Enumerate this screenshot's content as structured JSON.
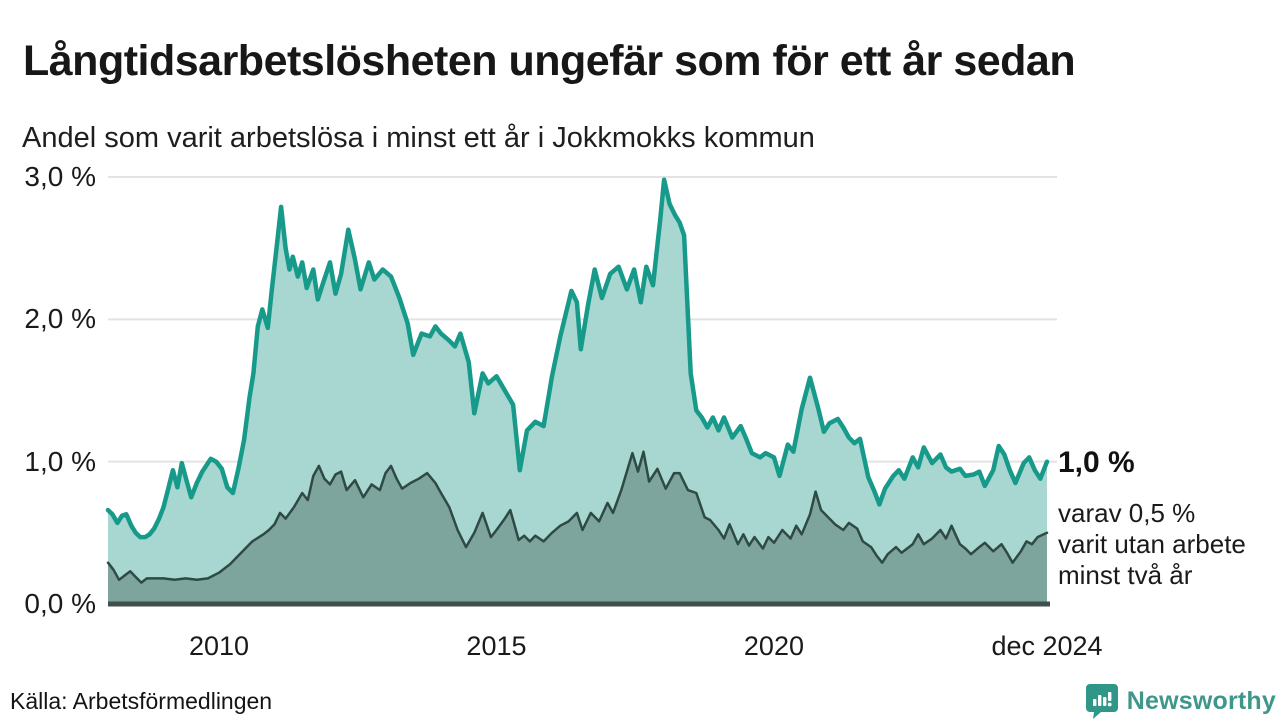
{
  "header": {
    "title": "Långtidsarbetslösheten ungefär som för ett år sedan",
    "subtitle": "Andel som varit arbetslösa i minst ett år i Jokkmokks kommun"
  },
  "chart_data": {
    "type": "area",
    "title": "Långtidsarbetslösheten ungefär som för ett år sedan",
    "subtitle": "Andel som varit arbetslösa i minst ett år i Jokkmokks kommun",
    "x_range": [
      2008.0,
      2024.92
    ],
    "y_range": [
      0,
      3
    ],
    "grid": true,
    "legend_position": "none",
    "ylabel": "",
    "xlabel": "",
    "x_ticks": [
      {
        "x": 2010,
        "label": "2010"
      },
      {
        "x": 2015,
        "label": "2015"
      },
      {
        "x": 2020,
        "label": "2020"
      },
      {
        "x": 2024.92,
        "label": "dec 2024"
      }
    ],
    "y_ticks": [
      {
        "v": 0,
        "label": "0,0 %"
      },
      {
        "v": 1,
        "label": "1,0 %"
      },
      {
        "v": 2,
        "label": "2,0 %"
      },
      {
        "v": 3,
        "label": "3,0 %"
      }
    ],
    "series": [
      {
        "name": "Andel som varit arbetslösa minst ett år",
        "line_color": "#189a8b",
        "fill_color": "#a7d7d0",
        "line_width": 4.5,
        "points": [
          [
            2008.0,
            0.66
          ],
          [
            2008.08,
            0.63
          ],
          [
            2008.17,
            0.57
          ],
          [
            2008.25,
            0.62
          ],
          [
            2008.33,
            0.63
          ],
          [
            2008.42,
            0.55
          ],
          [
            2008.5,
            0.5
          ],
          [
            2008.58,
            0.47
          ],
          [
            2008.67,
            0.47
          ],
          [
            2008.75,
            0.49
          ],
          [
            2008.83,
            0.53
          ],
          [
            2008.92,
            0.6
          ],
          [
            2009.0,
            0.68
          ],
          [
            2009.08,
            0.8
          ],
          [
            2009.17,
            0.94
          ],
          [
            2009.25,
            0.82
          ],
          [
            2009.33,
            0.99
          ],
          [
            2009.42,
            0.86
          ],
          [
            2009.5,
            0.75
          ],
          [
            2009.6,
            0.85
          ],
          [
            2009.7,
            0.93
          ],
          [
            2009.85,
            1.02
          ],
          [
            2009.95,
            1.0
          ],
          [
            2010.05,
            0.95
          ],
          [
            2010.15,
            0.82
          ],
          [
            2010.25,
            0.78
          ],
          [
            2010.35,
            0.95
          ],
          [
            2010.45,
            1.15
          ],
          [
            2010.55,
            1.45
          ],
          [
            2010.62,
            1.62
          ],
          [
            2010.7,
            1.95
          ],
          [
            2010.78,
            2.07
          ],
          [
            2010.88,
            1.94
          ],
          [
            2010.95,
            2.2
          ],
          [
            2011.05,
            2.55
          ],
          [
            2011.12,
            2.79
          ],
          [
            2011.2,
            2.5
          ],
          [
            2011.27,
            2.35
          ],
          [
            2011.33,
            2.44
          ],
          [
            2011.42,
            2.3
          ],
          [
            2011.5,
            2.4
          ],
          [
            2011.58,
            2.22
          ],
          [
            2011.7,
            2.35
          ],
          [
            2011.78,
            2.14
          ],
          [
            2011.88,
            2.26
          ],
          [
            2012.0,
            2.4
          ],
          [
            2012.1,
            2.18
          ],
          [
            2012.2,
            2.32
          ],
          [
            2012.33,
            2.63
          ],
          [
            2012.45,
            2.42
          ],
          [
            2012.55,
            2.21
          ],
          [
            2012.7,
            2.4
          ],
          [
            2012.8,
            2.28
          ],
          [
            2012.95,
            2.35
          ],
          [
            2013.1,
            2.3
          ],
          [
            2013.25,
            2.15
          ],
          [
            2013.4,
            1.97
          ],
          [
            2013.5,
            1.75
          ],
          [
            2013.65,
            1.9
          ],
          [
            2013.8,
            1.88
          ],
          [
            2013.9,
            1.95
          ],
          [
            2014.0,
            1.9
          ],
          [
            2014.15,
            1.85
          ],
          [
            2014.25,
            1.81
          ],
          [
            2014.35,
            1.9
          ],
          [
            2014.5,
            1.7
          ],
          [
            2014.6,
            1.34
          ],
          [
            2014.75,
            1.62
          ],
          [
            2014.85,
            1.55
          ],
          [
            2015.0,
            1.6
          ],
          [
            2015.15,
            1.5
          ],
          [
            2015.3,
            1.4
          ],
          [
            2015.42,
            0.94
          ],
          [
            2015.55,
            1.22
          ],
          [
            2015.7,
            1.28
          ],
          [
            2015.85,
            1.25
          ],
          [
            2016.0,
            1.6
          ],
          [
            2016.15,
            1.88
          ],
          [
            2016.35,
            2.2
          ],
          [
            2016.45,
            2.12
          ],
          [
            2016.52,
            1.79
          ],
          [
            2016.65,
            2.1
          ],
          [
            2016.77,
            2.35
          ],
          [
            2016.9,
            2.15
          ],
          [
            2017.05,
            2.32
          ],
          [
            2017.2,
            2.37
          ],
          [
            2017.35,
            2.21
          ],
          [
            2017.48,
            2.35
          ],
          [
            2017.6,
            2.12
          ],
          [
            2017.7,
            2.37
          ],
          [
            2017.82,
            2.24
          ],
          [
            2017.95,
            2.7
          ],
          [
            2018.02,
            2.98
          ],
          [
            2018.12,
            2.81
          ],
          [
            2018.22,
            2.73
          ],
          [
            2018.3,
            2.68
          ],
          [
            2018.38,
            2.59
          ],
          [
            2018.5,
            1.62
          ],
          [
            2018.6,
            1.36
          ],
          [
            2018.7,
            1.31
          ],
          [
            2018.8,
            1.24
          ],
          [
            2018.9,
            1.31
          ],
          [
            2019.0,
            1.22
          ],
          [
            2019.1,
            1.31
          ],
          [
            2019.25,
            1.17
          ],
          [
            2019.4,
            1.25
          ],
          [
            2019.5,
            1.16
          ],
          [
            2019.6,
            1.06
          ],
          [
            2019.75,
            1.03
          ],
          [
            2019.85,
            1.06
          ],
          [
            2020.0,
            1.03
          ],
          [
            2020.1,
            0.9
          ],
          [
            2020.25,
            1.12
          ],
          [
            2020.35,
            1.07
          ],
          [
            2020.5,
            1.37
          ],
          [
            2020.65,
            1.59
          ],
          [
            2020.8,
            1.37
          ],
          [
            2020.9,
            1.21
          ],
          [
            2021.0,
            1.27
          ],
          [
            2021.15,
            1.3
          ],
          [
            2021.25,
            1.24
          ],
          [
            2021.35,
            1.17
          ],
          [
            2021.45,
            1.13
          ],
          [
            2021.55,
            1.16
          ],
          [
            2021.7,
            0.89
          ],
          [
            2021.8,
            0.8
          ],
          [
            2021.9,
            0.7
          ],
          [
            2022.0,
            0.81
          ],
          [
            2022.15,
            0.9
          ],
          [
            2022.25,
            0.94
          ],
          [
            2022.35,
            0.88
          ],
          [
            2022.5,
            1.03
          ],
          [
            2022.6,
            0.96
          ],
          [
            2022.7,
            1.1
          ],
          [
            2022.85,
            0.99
          ],
          [
            2023.0,
            1.05
          ],
          [
            2023.1,
            0.96
          ],
          [
            2023.2,
            0.93
          ],
          [
            2023.35,
            0.95
          ],
          [
            2023.45,
            0.9
          ],
          [
            2023.6,
            0.91
          ],
          [
            2023.7,
            0.93
          ],
          [
            2023.8,
            0.83
          ],
          [
            2023.95,
            0.94
          ],
          [
            2024.05,
            1.11
          ],
          [
            2024.15,
            1.05
          ],
          [
            2024.25,
            0.94
          ],
          [
            2024.35,
            0.85
          ],
          [
            2024.5,
            0.99
          ],
          [
            2024.6,
            1.03
          ],
          [
            2024.7,
            0.94
          ],
          [
            2024.8,
            0.88
          ],
          [
            2024.92,
            1.0
          ]
        ]
      },
      {
        "name": "varav utan arbete minst två år",
        "line_color": "#2f4a44",
        "fill_color": "#7ea59d",
        "line_width": 2.5,
        "points": [
          [
            2008.0,
            0.29
          ],
          [
            2008.1,
            0.24
          ],
          [
            2008.2,
            0.17
          ],
          [
            2008.3,
            0.2
          ],
          [
            2008.4,
            0.23
          ],
          [
            2008.5,
            0.19
          ],
          [
            2008.6,
            0.15
          ],
          [
            2008.7,
            0.18
          ],
          [
            2008.85,
            0.18
          ],
          [
            2009.0,
            0.18
          ],
          [
            2009.2,
            0.17
          ],
          [
            2009.4,
            0.18
          ],
          [
            2009.6,
            0.17
          ],
          [
            2009.8,
            0.18
          ],
          [
            2010.0,
            0.22
          ],
          [
            2010.2,
            0.28
          ],
          [
            2010.4,
            0.36
          ],
          [
            2010.6,
            0.44
          ],
          [
            2010.8,
            0.49
          ],
          [
            2010.9,
            0.52
          ],
          [
            2011.0,
            0.56
          ],
          [
            2011.1,
            0.64
          ],
          [
            2011.2,
            0.6
          ],
          [
            2011.35,
            0.68
          ],
          [
            2011.5,
            0.78
          ],
          [
            2011.6,
            0.73
          ],
          [
            2011.7,
            0.9
          ],
          [
            2011.8,
            0.97
          ],
          [
            2011.9,
            0.88
          ],
          [
            2012.0,
            0.84
          ],
          [
            2012.1,
            0.91
          ],
          [
            2012.2,
            0.93
          ],
          [
            2012.3,
            0.8
          ],
          [
            2012.45,
            0.87
          ],
          [
            2012.6,
            0.75
          ],
          [
            2012.75,
            0.84
          ],
          [
            2012.9,
            0.8
          ],
          [
            2013.0,
            0.92
          ],
          [
            2013.1,
            0.97
          ],
          [
            2013.2,
            0.88
          ],
          [
            2013.3,
            0.81
          ],
          [
            2013.45,
            0.85
          ],
          [
            2013.6,
            0.88
          ],
          [
            2013.75,
            0.92
          ],
          [
            2013.9,
            0.85
          ],
          [
            2014.0,
            0.78
          ],
          [
            2014.15,
            0.68
          ],
          [
            2014.3,
            0.52
          ],
          [
            2014.45,
            0.4
          ],
          [
            2014.6,
            0.5
          ],
          [
            2014.75,
            0.64
          ],
          [
            2014.9,
            0.47
          ],
          [
            2015.0,
            0.52
          ],
          [
            2015.15,
            0.6
          ],
          [
            2015.25,
            0.66
          ],
          [
            2015.4,
            0.45
          ],
          [
            2015.5,
            0.48
          ],
          [
            2015.6,
            0.44
          ],
          [
            2015.7,
            0.48
          ],
          [
            2015.85,
            0.44
          ],
          [
            2016.0,
            0.5
          ],
          [
            2016.15,
            0.55
          ],
          [
            2016.3,
            0.58
          ],
          [
            2016.45,
            0.64
          ],
          [
            2016.55,
            0.52
          ],
          [
            2016.7,
            0.64
          ],
          [
            2016.85,
            0.58
          ],
          [
            2017.0,
            0.71
          ],
          [
            2017.1,
            0.64
          ],
          [
            2017.25,
            0.8
          ],
          [
            2017.45,
            1.06
          ],
          [
            2017.55,
            0.93
          ],
          [
            2017.65,
            1.07
          ],
          [
            2017.75,
            0.86
          ],
          [
            2017.9,
            0.95
          ],
          [
            2018.05,
            0.81
          ],
          [
            2018.2,
            0.92
          ],
          [
            2018.3,
            0.92
          ],
          [
            2018.45,
            0.8
          ],
          [
            2018.6,
            0.78
          ],
          [
            2018.75,
            0.61
          ],
          [
            2018.85,
            0.59
          ],
          [
            2019.0,
            0.52
          ],
          [
            2019.1,
            0.46
          ],
          [
            2019.2,
            0.56
          ],
          [
            2019.35,
            0.42
          ],
          [
            2019.45,
            0.49
          ],
          [
            2019.55,
            0.41
          ],
          [
            2019.65,
            0.47
          ],
          [
            2019.8,
            0.39
          ],
          [
            2019.9,
            0.47
          ],
          [
            2020.0,
            0.43
          ],
          [
            2020.15,
            0.52
          ],
          [
            2020.3,
            0.46
          ],
          [
            2020.4,
            0.55
          ],
          [
            2020.5,
            0.49
          ],
          [
            2020.65,
            0.63
          ],
          [
            2020.75,
            0.79
          ],
          [
            2020.85,
            0.66
          ],
          [
            2021.0,
            0.6
          ],
          [
            2021.1,
            0.56
          ],
          [
            2021.25,
            0.52
          ],
          [
            2021.35,
            0.57
          ],
          [
            2021.5,
            0.53
          ],
          [
            2021.6,
            0.44
          ],
          [
            2021.75,
            0.4
          ],
          [
            2021.85,
            0.34
          ],
          [
            2021.95,
            0.29
          ],
          [
            2022.05,
            0.35
          ],
          [
            2022.2,
            0.4
          ],
          [
            2022.3,
            0.36
          ],
          [
            2022.5,
            0.42
          ],
          [
            2022.6,
            0.49
          ],
          [
            2022.7,
            0.42
          ],
          [
            2022.85,
            0.46
          ],
          [
            2023.0,
            0.52
          ],
          [
            2023.1,
            0.46
          ],
          [
            2023.2,
            0.55
          ],
          [
            2023.35,
            0.42
          ],
          [
            2023.45,
            0.39
          ],
          [
            2023.55,
            0.35
          ],
          [
            2023.7,
            0.4
          ],
          [
            2023.8,
            0.43
          ],
          [
            2023.95,
            0.37
          ],
          [
            2024.1,
            0.42
          ],
          [
            2024.2,
            0.36
          ],
          [
            2024.3,
            0.29
          ],
          [
            2024.45,
            0.37
          ],
          [
            2024.55,
            0.44
          ],
          [
            2024.65,
            0.42
          ],
          [
            2024.75,
            0.47
          ],
          [
            2024.92,
            0.5
          ]
        ]
      }
    ]
  },
  "annotations": {
    "latest_value": "1,0 %",
    "note_lines": [
      "varav 0,5 %",
      "varit utan arbete",
      "minst två år"
    ]
  },
  "footer": {
    "source": "Källa: Arbetsförmedlingen",
    "logo_text": "Newsworthy"
  },
  "colors": {
    "grid": "#e3e3e3",
    "baseline": "#3f4f4b",
    "brand_teal": "#2f9688",
    "brand_text": "#3f968a",
    "title_text": "#171717"
  }
}
